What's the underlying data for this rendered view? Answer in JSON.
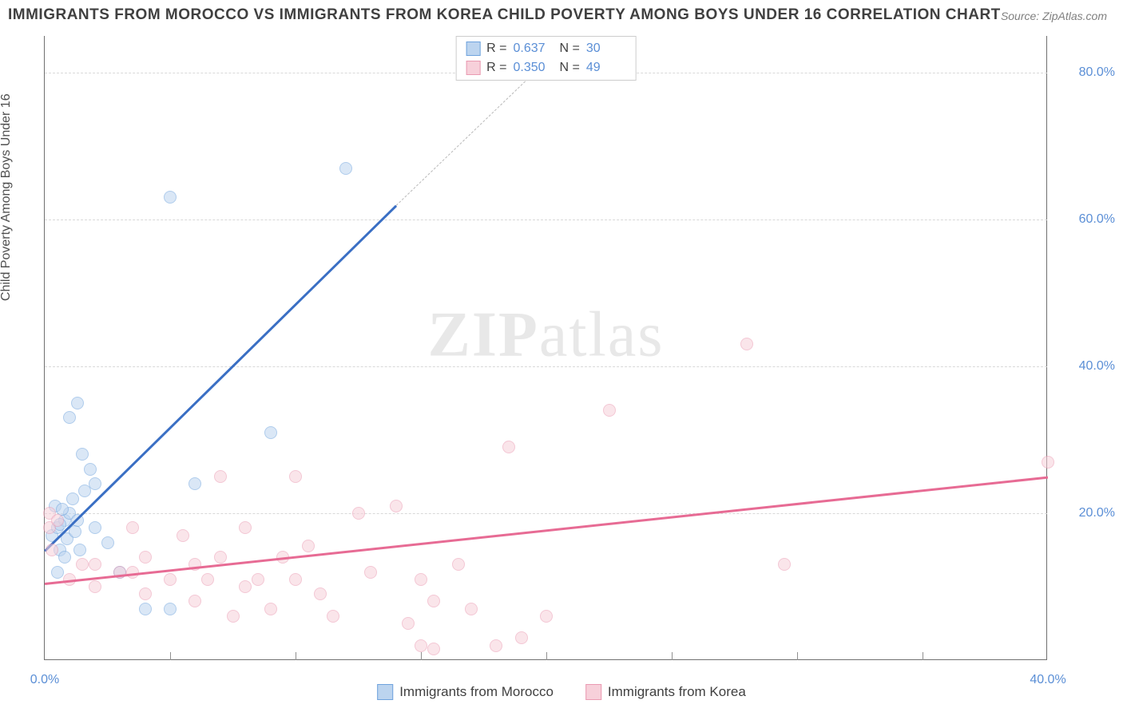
{
  "title": "IMMIGRANTS FROM MOROCCO VS IMMIGRANTS FROM KOREA CHILD POVERTY AMONG BOYS UNDER 16 CORRELATION CHART",
  "source": "Source: ZipAtlas.com",
  "y_axis_label": "Child Poverty Among Boys Under 16",
  "watermark_bold": "ZIP",
  "watermark_rest": "atlas",
  "chart": {
    "type": "scatter-correlation",
    "background_color": "#ffffff",
    "grid_color": "#d8d8d8",
    "axis_color": "#707070",
    "tick_label_color": "#5b8fd6",
    "title_color": "#404040",
    "title_fontsize": 19,
    "label_fontsize": 16,
    "xlim": [
      0,
      40
    ],
    "ylim": [
      0,
      85
    ],
    "y_ticks": [
      20,
      40,
      60,
      80
    ],
    "y_tick_labels": [
      "20.0%",
      "40.0%",
      "60.0%",
      "80.0%"
    ],
    "x_ticks": [
      0,
      40
    ],
    "x_tick_labels": [
      "0.0%",
      "40.0%"
    ],
    "x_minor_ticks": [
      5,
      10,
      15,
      20,
      25,
      30,
      35
    ],
    "marker_radius": 8,
    "marker_opacity": 0.55,
    "line_width": 2.5,
    "series": [
      {
        "name": "Immigrants from Morocco",
        "color_fill": "#bcd4ef",
        "color_stroke": "#6fa3dd",
        "line_color": "#3a6fc4",
        "R": "0.637",
        "N": "30",
        "points": [
          [
            0.3,
            17
          ],
          [
            0.5,
            18
          ],
          [
            0.6,
            15
          ],
          [
            0.8,
            19
          ],
          [
            0.9,
            16.5
          ],
          [
            1.0,
            20
          ],
          [
            1.2,
            17.5
          ],
          [
            0.8,
            14
          ],
          [
            1.3,
            19
          ],
          [
            1.0,
            33
          ],
          [
            1.3,
            35
          ],
          [
            1.6,
            23
          ],
          [
            2.0,
            24
          ],
          [
            1.5,
            28
          ],
          [
            2.5,
            16
          ],
          [
            2.0,
            18
          ],
          [
            3.0,
            12
          ],
          [
            4.0,
            7
          ],
          [
            5.0,
            7
          ],
          [
            6.0,
            24
          ],
          [
            9.0,
            31
          ],
          [
            5.0,
            63
          ],
          [
            12.0,
            67
          ],
          [
            0.5,
            12
          ],
          [
            0.4,
            21
          ],
          [
            1.1,
            22
          ],
          [
            1.4,
            15
          ],
          [
            0.7,
            20.5
          ],
          [
            0.6,
            18.5
          ],
          [
            1.8,
            26
          ]
        ],
        "trend": {
          "x1": 0,
          "y1": 15,
          "x2": 14,
          "y2": 62
        },
        "trend_dash": {
          "x1": 14,
          "y1": 62,
          "x2": 21,
          "y2": 85
        }
      },
      {
        "name": "Immigrants from Korea",
        "color_fill": "#f7d0da",
        "color_stroke": "#ea9ab2",
        "line_color": "#e76b94",
        "R": "0.350",
        "N": "49",
        "points": [
          [
            0.2,
            20
          ],
          [
            0.2,
            18
          ],
          [
            0.5,
            19
          ],
          [
            0.3,
            15
          ],
          [
            1.0,
            11
          ],
          [
            1.5,
            13
          ],
          [
            2.0,
            10
          ],
          [
            2.0,
            13
          ],
          [
            3.0,
            12
          ],
          [
            3.5,
            18
          ],
          [
            3.5,
            12
          ],
          [
            4.0,
            9
          ],
          [
            4.0,
            14
          ],
          [
            5.0,
            11
          ],
          [
            5.5,
            17
          ],
          [
            6.0,
            13
          ],
          [
            6.0,
            8
          ],
          [
            6.5,
            11
          ],
          [
            7.0,
            25
          ],
          [
            7.0,
            14
          ],
          [
            7.5,
            6
          ],
          [
            8.0,
            10
          ],
          [
            8.0,
            18
          ],
          [
            8.5,
            11
          ],
          [
            9.0,
            7
          ],
          [
            9.5,
            14
          ],
          [
            10.0,
            11
          ],
          [
            10.0,
            25
          ],
          [
            10.5,
            15.5
          ],
          [
            11.0,
            9
          ],
          [
            11.5,
            6
          ],
          [
            12.5,
            20
          ],
          [
            13.0,
            12
          ],
          [
            14.0,
            21
          ],
          [
            14.5,
            5
          ],
          [
            15.0,
            11
          ],
          [
            15.0,
            2
          ],
          [
            15.5,
            1.5
          ],
          [
            15.5,
            8
          ],
          [
            16.5,
            13
          ],
          [
            17.0,
            7
          ],
          [
            18.0,
            2
          ],
          [
            18.5,
            29
          ],
          [
            19.0,
            3
          ],
          [
            20.0,
            6
          ],
          [
            22.5,
            34
          ],
          [
            28.0,
            43
          ],
          [
            29.5,
            13
          ],
          [
            40.0,
            27
          ]
        ],
        "trend": {
          "x1": 0,
          "y1": 10.5,
          "x2": 40,
          "y2": 25
        }
      }
    ]
  },
  "legend_top": {
    "rows": [
      {
        "swatch_fill": "#bcd4ef",
        "swatch_stroke": "#6fa3dd",
        "r_label": "R =",
        "r_val": "0.637",
        "n_label": "N =",
        "n_val": "30"
      },
      {
        "swatch_fill": "#f7d0da",
        "swatch_stroke": "#ea9ab2",
        "r_label": "R =",
        "r_val": "0.350",
        "n_label": "N =",
        "n_val": "49"
      }
    ]
  },
  "legend_bottom": {
    "items": [
      {
        "swatch_fill": "#bcd4ef",
        "swatch_stroke": "#6fa3dd",
        "label": "Immigrants from Morocco"
      },
      {
        "swatch_fill": "#f7d0da",
        "swatch_stroke": "#ea9ab2",
        "label": "Immigrants from Korea"
      }
    ]
  }
}
